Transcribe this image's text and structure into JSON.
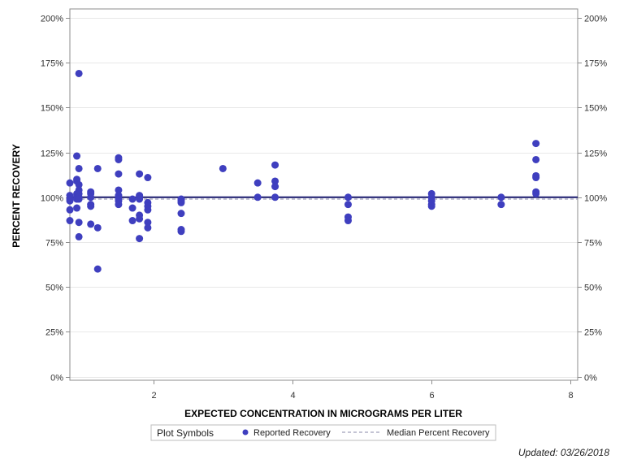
{
  "chart_data": {
    "type": "scatter",
    "title": "",
    "xlabel": "EXPECTED CONCENTRATION IN MICROGRAMS PER LITER",
    "ylabel": "PERCENT RECOVERY",
    "xlim": [
      0.8,
      8.1
    ],
    "ylim": [
      -0.02,
      2.05
    ],
    "x_ticks": [
      2,
      4,
      6,
      8
    ],
    "x_tick_labels": [
      "2",
      "4",
      "6",
      "8"
    ],
    "y_ticks": [
      0,
      0.25,
      0.5,
      0.75,
      1.0,
      1.25,
      1.5,
      1.75,
      2.0
    ],
    "y_tick_labels": [
      "0%",
      "25%",
      "50%",
      "75%",
      "100%",
      "125%",
      "150%",
      "175%",
      "200%"
    ],
    "grid": true,
    "colors": {
      "points": "#3f3fbf",
      "reference_line": "#1a1a6e",
      "median_line": "#8a8aa8",
      "grid": "#e8e8e8",
      "frame": "#8c8c8c"
    },
    "reference_line_y": 1.0,
    "series": [
      {
        "name": "Reported Recovery",
        "kind": "points",
        "points": [
          [
            0.8,
            1.08
          ],
          [
            0.8,
            1.01
          ],
          [
            0.8,
            0.99
          ],
          [
            0.8,
            0.98
          ],
          [
            0.8,
            0.93
          ],
          [
            0.8,
            0.87
          ],
          [
            0.9,
            1.23
          ],
          [
            0.9,
            1.1
          ],
          [
            0.9,
            1.09
          ],
          [
            0.9,
            1.02
          ],
          [
            0.9,
            1.0
          ],
          [
            0.9,
            0.99
          ],
          [
            0.9,
            0.94
          ],
          [
            0.93,
            1.69
          ],
          [
            0.93,
            1.16
          ],
          [
            0.93,
            1.07
          ],
          [
            0.93,
            1.04
          ],
          [
            0.93,
            1.02
          ],
          [
            0.93,
            1.0
          ],
          [
            0.93,
            0.99
          ],
          [
            0.93,
            0.86
          ],
          [
            0.93,
            0.78
          ],
          [
            1.1,
            1.03
          ],
          [
            1.1,
            1.02
          ],
          [
            1.1,
            1.0
          ],
          [
            1.1,
            0.96
          ],
          [
            1.1,
            0.95
          ],
          [
            1.1,
            0.85
          ],
          [
            1.2,
            1.16
          ],
          [
            1.2,
            0.83
          ],
          [
            1.2,
            0.6
          ],
          [
            1.5,
            1.22
          ],
          [
            1.5,
            1.21
          ],
          [
            1.5,
            1.13
          ],
          [
            1.5,
            1.04
          ],
          [
            1.5,
            1.01
          ],
          [
            1.5,
            0.99
          ],
          [
            1.5,
            0.98
          ],
          [
            1.5,
            0.96
          ],
          [
            1.7,
            0.99
          ],
          [
            1.7,
            0.94
          ],
          [
            1.7,
            0.87
          ],
          [
            1.8,
            1.13
          ],
          [
            1.8,
            1.01
          ],
          [
            1.8,
            1.0
          ],
          [
            1.8,
            0.99
          ],
          [
            1.8,
            0.9
          ],
          [
            1.8,
            0.88
          ],
          [
            1.8,
            0.77
          ],
          [
            1.92,
            1.11
          ],
          [
            1.92,
            0.97
          ],
          [
            1.92,
            0.95
          ],
          [
            1.92,
            0.93
          ],
          [
            1.92,
            0.86
          ],
          [
            1.92,
            0.83
          ],
          [
            2.4,
            0.99
          ],
          [
            2.4,
            0.98
          ],
          [
            2.4,
            0.97
          ],
          [
            2.4,
            0.91
          ],
          [
            2.4,
            0.82
          ],
          [
            2.4,
            0.81
          ],
          [
            3.0,
            1.16
          ],
          [
            3.5,
            1.08
          ],
          [
            3.5,
            1.0
          ],
          [
            3.75,
            1.18
          ],
          [
            3.75,
            1.09
          ],
          [
            3.75,
            1.06
          ],
          [
            3.75,
            1.0
          ],
          [
            4.8,
            1.0
          ],
          [
            4.8,
            0.96
          ],
          [
            4.8,
            0.89
          ],
          [
            4.8,
            0.87
          ],
          [
            6.0,
            1.02
          ],
          [
            6.0,
            1.0
          ],
          [
            6.0,
            0.98
          ],
          [
            6.0,
            0.96
          ],
          [
            6.0,
            0.95
          ],
          [
            7.0,
            1.0
          ],
          [
            7.0,
            0.96
          ],
          [
            7.5,
            1.3
          ],
          [
            7.5,
            1.21
          ],
          [
            7.5,
            1.12
          ],
          [
            7.5,
            1.11
          ],
          [
            7.5,
            1.03
          ],
          [
            7.5,
            1.02
          ]
        ]
      },
      {
        "name": "Median Percent Recovery",
        "kind": "dashed-line",
        "value": 0.99
      }
    ],
    "legend": {
      "title": "Plot Symbols",
      "placement": "bottom-center",
      "items": [
        {
          "label": "Reported Recovery",
          "symbol": "circle"
        },
        {
          "label": "Median Percent Recovery",
          "symbol": "dashed-line"
        }
      ]
    },
    "footer": "Updated: 03/26/2018"
  }
}
